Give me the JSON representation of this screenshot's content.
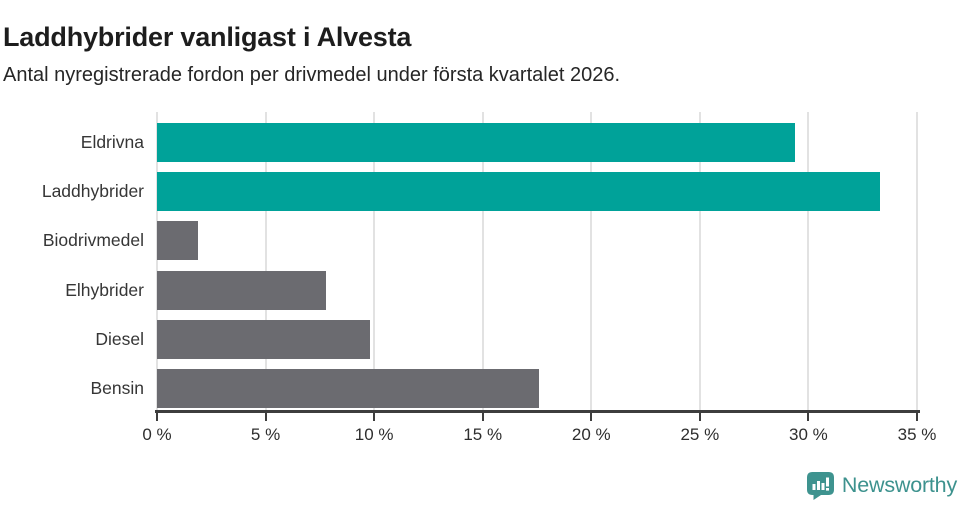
{
  "header": {
    "title": "Laddhybrider vanligast i Alvesta",
    "subtitle": "Antal nyregistrerade fordon per drivmedel under första kvartalet 2026."
  },
  "chart_data": {
    "type": "bar",
    "orientation": "horizontal",
    "title": "Laddhybrider vanligast i Alvesta",
    "subtitle": "Antal nyregistrerade fordon per drivmedel under första kvartalet 2026.",
    "categories": [
      "Eldrivna",
      "Laddhybrider",
      "Biodrivmedel",
      "Elhybrider",
      "Diesel",
      "Bensin"
    ],
    "values": [
      29.4,
      33.3,
      1.9,
      7.8,
      9.8,
      17.6
    ],
    "unit": "%",
    "bar_colors": [
      "#00a299",
      "#00a299",
      "#6b6b70",
      "#6b6b70",
      "#6b6b70",
      "#6b6b70"
    ],
    "xlim": [
      0,
      35
    ],
    "x_ticks": [
      0,
      5,
      10,
      15,
      20,
      25,
      30,
      35
    ],
    "x_tick_labels": [
      "0 %",
      "5 %",
      "10 %",
      "15 %",
      "20 %",
      "25 %",
      "30 %",
      "35 %"
    ],
    "grid": true,
    "legend": "none"
  },
  "colors": {
    "highlight": "#00a299",
    "muted": "#6b6b70",
    "axis": "#3d3d3d",
    "gridline": "#e2e2e2",
    "title_text": "#1d1d1d",
    "brand_teal": "#3e938f"
  },
  "footer": {
    "brand_name": "Newsworthy",
    "brand_logo_icon": "speech-bubble-bar-chart-icon"
  }
}
